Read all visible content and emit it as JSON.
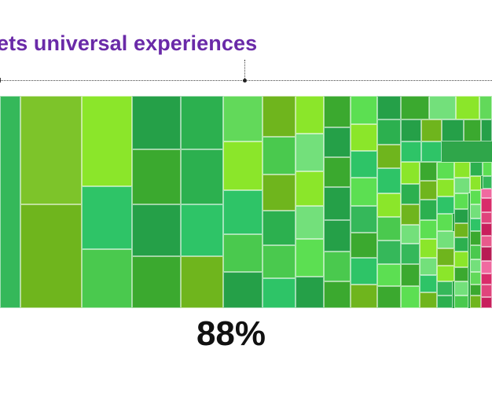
{
  "slide": {
    "heading": "ets universal experiences",
    "percent": "88%"
  },
  "colors": {
    "heading": "#6a2aa8",
    "palette": [
      "#35b85a",
      "#7dc42a",
      "#8be62a",
      "#25a048",
      "#2cb04f",
      "#62d95a",
      "#6fb51d",
      "#4ac94e",
      "#5cdf52",
      "#3ba92f",
      "#54d84c",
      "#73e07b",
      "#2ec467",
      "#5a9f0f",
      "#d92c6a"
    ]
  }
}
